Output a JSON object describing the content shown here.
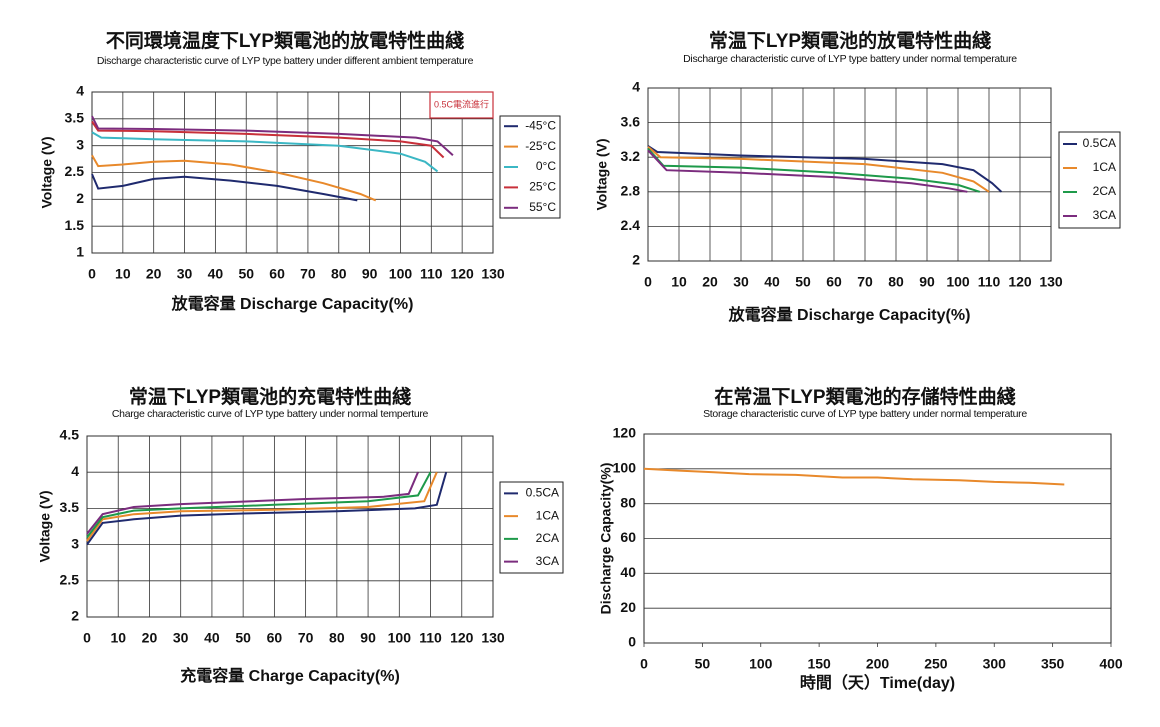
{
  "chart_data": [
    {
      "type": "line",
      "title": "不同環境温度下LYP類電池的放電特性曲綫",
      "subtitle": "Discharge characteristic curve of LYP type battery under different ambient temperature",
      "y_label": "Voltage (V)",
      "x_label": "放電容量 Discharge Capacity(%)",
      "annotation": "0.5C電流進行",
      "xlim": [
        0,
        130
      ],
      "xticks": [
        0,
        10,
        20,
        30,
        40,
        50,
        60,
        70,
        80,
        90,
        100,
        110,
        120,
        130
      ],
      "ylim": [
        1,
        4
      ],
      "yticks": [
        1,
        1.5,
        2,
        2.5,
        3,
        3.5,
        4
      ],
      "grid": "both",
      "legend": "right",
      "series": [
        {
          "name": "-45°C",
          "color": "#1f2a6e",
          "x": [
            0,
            2,
            10,
            20,
            30,
            45,
            60,
            75,
            86
          ],
          "values": [
            2.47,
            2.2,
            2.25,
            2.38,
            2.42,
            2.35,
            2.25,
            2.1,
            1.98
          ]
        },
        {
          "name": "-25°C",
          "color": "#e8892b",
          "x": [
            0,
            2,
            10,
            20,
            30,
            45,
            60,
            75,
            87,
            92
          ],
          "values": [
            2.82,
            2.62,
            2.65,
            2.7,
            2.72,
            2.65,
            2.5,
            2.3,
            2.1,
            1.98
          ]
        },
        {
          "name": "0°C",
          "color": "#3bb7c4",
          "x": [
            0,
            3,
            20,
            50,
            80,
            100,
            108,
            112
          ],
          "values": [
            3.25,
            3.15,
            3.12,
            3.08,
            3.0,
            2.85,
            2.7,
            2.52
          ]
        },
        {
          "name": "25°C",
          "color": "#c8303a",
          "x": [
            0,
            2,
            20,
            50,
            80,
            100,
            110,
            114
          ],
          "values": [
            3.45,
            3.28,
            3.27,
            3.22,
            3.15,
            3.08,
            3.0,
            2.78
          ]
        },
        {
          "name": "55°C",
          "color": "#7b2c7e",
          "x": [
            0,
            2,
            20,
            50,
            80,
            105,
            112,
            117
          ],
          "values": [
            3.55,
            3.32,
            3.31,
            3.28,
            3.22,
            3.15,
            3.08,
            2.82
          ]
        }
      ]
    },
    {
      "type": "line",
      "title": "常温下LYP類電池的放電特性曲綫",
      "subtitle": "Discharge characteristic curve of LYP type battery under normal temperature",
      "y_label": "Voltage (V)",
      "x_label": "放電容量 Discharge Capacity(%)",
      "xlim": [
        0,
        130
      ],
      "xticks": [
        0,
        10,
        20,
        30,
        40,
        50,
        60,
        70,
        80,
        90,
        100,
        110,
        120,
        130
      ],
      "ylim": [
        2,
        4
      ],
      "yticks": [
        2,
        2.4,
        2.8,
        3.2,
        3.6,
        4
      ],
      "grid": "both",
      "legend": "right",
      "series": [
        {
          "name": "0.5CA",
          "color": "#1f2a6e",
          "x": [
            0,
            3,
            30,
            70,
            95,
            105,
            111,
            114
          ],
          "values": [
            3.33,
            3.26,
            3.22,
            3.18,
            3.12,
            3.05,
            2.9,
            2.8
          ]
        },
        {
          "name": "1CA",
          "color": "#e8892b",
          "x": [
            0,
            4,
            30,
            70,
            95,
            105,
            110
          ],
          "values": [
            3.32,
            3.2,
            3.18,
            3.12,
            3.02,
            2.92,
            2.8
          ]
        },
        {
          "name": "2CA",
          "color": "#1e9a4a",
          "x": [
            0,
            5,
            30,
            60,
            85,
            100,
            107
          ],
          "values": [
            3.3,
            3.1,
            3.08,
            3.02,
            2.95,
            2.88,
            2.8
          ]
        },
        {
          "name": "3CA",
          "color": "#7b2c7e",
          "x": [
            0,
            6,
            30,
            60,
            85,
            97,
            103
          ],
          "values": [
            3.28,
            3.05,
            3.02,
            2.97,
            2.9,
            2.84,
            2.8
          ]
        }
      ]
    },
    {
      "type": "line",
      "title": "常温下LYP類電池的充電特性曲綫",
      "subtitle": "Charge characteristic curve of LYP type battery under normal temperture",
      "y_label": "Voltage (V)",
      "x_label": "充電容量 Charge Capacity(%)",
      "xlim": [
        0,
        130
      ],
      "xticks": [
        0,
        10,
        20,
        30,
        40,
        50,
        60,
        70,
        80,
        90,
        100,
        110,
        120,
        130
      ],
      "ylim": [
        2,
        4.5
      ],
      "yticks": [
        2,
        2.5,
        3,
        3.5,
        4,
        4.5
      ],
      "grid": "both",
      "legend": "right",
      "series": [
        {
          "name": "0.5CA",
          "color": "#1f2a6e",
          "x": [
            0,
            5,
            15,
            30,
            50,
            80,
            105,
            112,
            115
          ],
          "values": [
            3.0,
            3.3,
            3.35,
            3.4,
            3.43,
            3.46,
            3.5,
            3.55,
            4.0
          ]
        },
        {
          "name": "1CA",
          "color": "#e8892b",
          "x": [
            0,
            5,
            15,
            30,
            60,
            90,
            108,
            112
          ],
          "values": [
            3.05,
            3.35,
            3.42,
            3.46,
            3.48,
            3.52,
            3.6,
            4.0
          ]
        },
        {
          "name": "2CA",
          "color": "#1e9a4a",
          "x": [
            0,
            5,
            15,
            30,
            60,
            90,
            106,
            110
          ],
          "values": [
            3.1,
            3.38,
            3.47,
            3.5,
            3.55,
            3.6,
            3.68,
            4.0
          ]
        },
        {
          "name": "3CA",
          "color": "#7b2c7e",
          "x": [
            0,
            5,
            15,
            30,
            70,
            95,
            103,
            106
          ],
          "values": [
            3.15,
            3.42,
            3.52,
            3.56,
            3.63,
            3.66,
            3.7,
            4.0
          ]
        }
      ]
    },
    {
      "type": "line",
      "title": "在常温下LYP類電池的存儲特性曲綫",
      "subtitle": "Storage characteristic curve of LYP type battery under normal temperature",
      "y_label": "Discharge Capacity(%)",
      "x_label": "時間（天）Time(day)",
      "xlim": [
        0,
        400
      ],
      "xticks": [
        0,
        50,
        100,
        150,
        200,
        250,
        300,
        350,
        400
      ],
      "ylim": [
        0,
        120
      ],
      "yticks": [
        0,
        20,
        40,
        60,
        80,
        100,
        120
      ],
      "grid": "y",
      "series": [
        {
          "color": "#e8892b",
          "x": [
            0,
            30,
            60,
            90,
            130,
            170,
            200,
            230,
            270,
            300,
            330,
            360
          ],
          "values": [
            100,
            99,
            98,
            97,
            96.5,
            95,
            95,
            94,
            93.5,
            92.5,
            92,
            91
          ]
        }
      ]
    }
  ]
}
